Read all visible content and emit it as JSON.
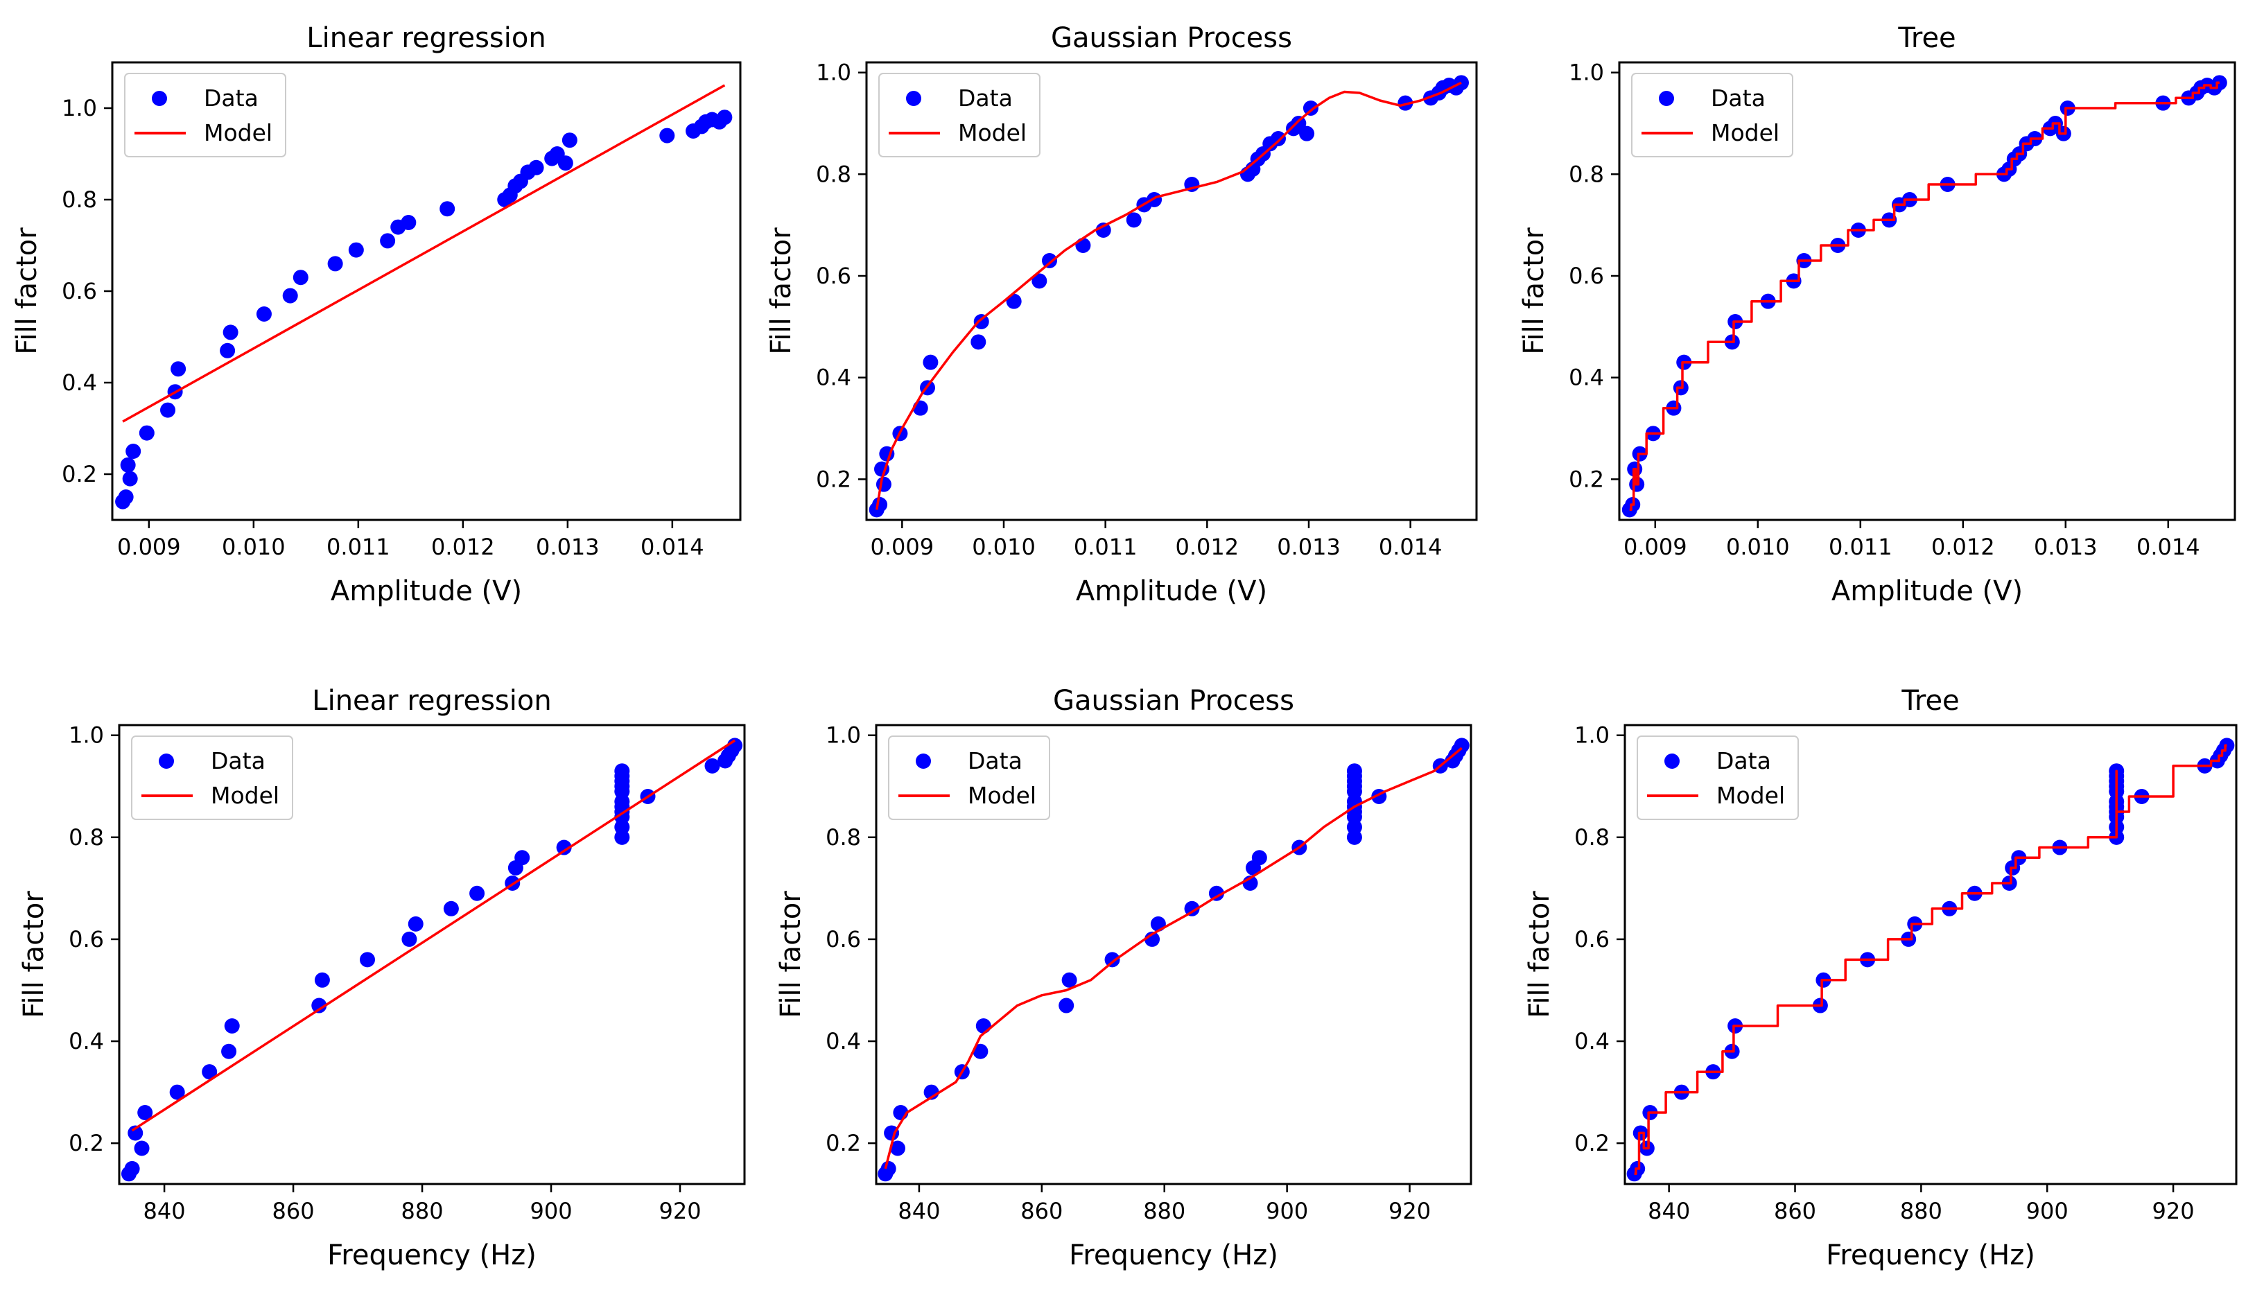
{
  "colors": {
    "data": "#0000ff",
    "model": "#ff0000",
    "axis": "#000000",
    "legend_border": "#cccccc",
    "background": "#ffffff"
  },
  "legend": {
    "data_label": "Data",
    "model_label": "Model",
    "placement": "top-left"
  },
  "amplitude_data": {
    "x": [
      0.00875,
      0.00878,
      0.0088,
      0.00882,
      0.00885,
      0.00898,
      0.00918,
      0.00925,
      0.00928,
      0.00975,
      0.00978,
      0.0101,
      0.01035,
      0.01045,
      0.01078,
      0.01098,
      0.01128,
      0.01138,
      0.01148,
      0.01185,
      0.0124,
      0.01245,
      0.0125,
      0.01255,
      0.01262,
      0.0127,
      0.01285,
      0.0129,
      0.01298,
      0.01302,
      0.01395,
      0.0142,
      0.01428,
      0.01432,
      0.01438,
      0.01445,
      0.0145
    ],
    "y": [
      0.14,
      0.15,
      0.22,
      0.19,
      0.25,
      0.29,
      0.34,
      0.38,
      0.43,
      0.47,
      0.51,
      0.55,
      0.59,
      0.63,
      0.66,
      0.69,
      0.71,
      0.74,
      0.75,
      0.78,
      0.8,
      0.81,
      0.83,
      0.84,
      0.86,
      0.87,
      0.89,
      0.9,
      0.88,
      0.93,
      0.94,
      0.95,
      0.96,
      0.97,
      0.975,
      0.97,
      0.98
    ]
  },
  "frequency_data": {
    "x": [
      834.5,
      835,
      835.5,
      836.5,
      837,
      842,
      847,
      850,
      850.5,
      864,
      864.5,
      871.5,
      878,
      879,
      884.5,
      888.5,
      894,
      894.5,
      895.5,
      902,
      911,
      911,
      911,
      911,
      911,
      911,
      911,
      911,
      911,
      911,
      911,
      915,
      925,
      927,
      927.5,
      928,
      928.5
    ],
    "y": [
      0.14,
      0.15,
      0.22,
      0.19,
      0.26,
      0.3,
      0.34,
      0.38,
      0.43,
      0.47,
      0.52,
      0.56,
      0.6,
      0.63,
      0.66,
      0.69,
      0.71,
      0.74,
      0.76,
      0.78,
      0.8,
      0.82,
      0.84,
      0.86,
      0.87,
      0.89,
      0.9,
      0.91,
      0.92,
      0.93,
      0.85,
      0.88,
      0.94,
      0.95,
      0.96,
      0.97,
      0.98
    ]
  },
  "chart_data": [
    {
      "type": "line",
      "model": "linear",
      "title": "Linear regression",
      "xlabel": "Amplitude (V)",
      "ylabel": "Fill factor",
      "xlim": [
        0.00865,
        0.01465
      ],
      "ylim": [
        0.1,
        1.1
      ],
      "xticks": [
        0.009,
        0.01,
        0.011,
        0.012,
        0.013,
        0.014
      ],
      "xtick_labels": [
        "0.009",
        "0.010",
        "0.011",
        "0.012",
        "0.013",
        "0.014"
      ],
      "yticks": [
        0.2,
        0.4,
        0.6,
        0.8,
        1.0
      ],
      "ytick_labels": [
        "0.2",
        "0.4",
        "0.6",
        "0.8",
        "1.0"
      ],
      "model_line": {
        "x": [
          0.00875,
          0.0145
        ],
        "y": [
          0.315,
          1.05
        ]
      }
    },
    {
      "type": "line",
      "model": "gp",
      "title": "Gaussian Process",
      "xlabel": "Amplitude (V)",
      "ylabel": "Fill factor",
      "xlim": [
        0.00865,
        0.01465
      ],
      "ylim": [
        0.12,
        1.02
      ],
      "xticks": [
        0.009,
        0.01,
        0.011,
        0.012,
        0.013,
        0.014
      ],
      "xtick_labels": [
        "0.009",
        "0.010",
        "0.011",
        "0.012",
        "0.013",
        "0.014"
      ],
      "yticks": [
        0.2,
        0.4,
        0.6,
        0.8,
        1.0
      ],
      "ytick_labels": [
        "0.2",
        "0.4",
        "0.6",
        "0.8",
        "1.0"
      ],
      "model_line": {
        "x": [
          0.00875,
          0.0088,
          0.0089,
          0.009,
          0.0092,
          0.0095,
          0.00975,
          0.01,
          0.0103,
          0.0106,
          0.0109,
          0.0112,
          0.0115,
          0.0118,
          0.0121,
          0.01235,
          0.0125,
          0.0127,
          0.0129,
          0.01305,
          0.0132,
          0.01335,
          0.0135,
          0.0137,
          0.0139,
          0.0141,
          0.0143,
          0.0145
        ],
        "y": [
          0.14,
          0.2,
          0.26,
          0.3,
          0.37,
          0.45,
          0.51,
          0.55,
          0.6,
          0.65,
          0.69,
          0.72,
          0.755,
          0.77,
          0.785,
          0.805,
          0.83,
          0.865,
          0.905,
          0.93,
          0.95,
          0.962,
          0.96,
          0.945,
          0.935,
          0.945,
          0.96,
          0.98
        ]
      }
    },
    {
      "type": "line",
      "model": "tree",
      "title": "Tree",
      "xlabel": "Amplitude (V)",
      "ylabel": "Fill factor",
      "xlim": [
        0.00865,
        0.01465
      ],
      "ylim": [
        0.12,
        1.02
      ],
      "xticks": [
        0.009,
        0.01,
        0.011,
        0.012,
        0.013,
        0.014
      ],
      "xtick_labels": [
        "0.009",
        "0.010",
        "0.011",
        "0.012",
        "0.013",
        "0.014"
      ],
      "yticks": [
        0.2,
        0.4,
        0.6,
        0.8,
        1.0
      ],
      "ytick_labels": [
        "0.2",
        "0.4",
        "0.6",
        "0.8",
        "1.0"
      ],
      "model_line": {
        "x": [
          0.00875,
          0.0093,
          0.0096,
          0.013,
          0.0134,
          0.0139,
          0.0145
        ],
        "y": [
          0.14,
          0.43,
          0.47,
          0.9,
          0.93,
          0.94,
          0.98
        ]
      }
    },
    {
      "type": "line",
      "model": "linear",
      "title": "Linear regression",
      "xlabel": "Frequency (Hz)",
      "ylabel": "Fill factor",
      "xlim": [
        833,
        930
      ],
      "ylim": [
        0.12,
        1.02
      ],
      "xticks": [
        840,
        860,
        880,
        900,
        920
      ],
      "xtick_labels": [
        "840",
        "860",
        "880",
        "900",
        "920"
      ],
      "yticks": [
        0.2,
        0.4,
        0.6,
        0.8,
        1.0
      ],
      "ytick_labels": [
        "0.2",
        "0.4",
        "0.6",
        "0.8",
        "1.0"
      ],
      "model_line": {
        "x": [
          835,
          928.5
        ],
        "y": [
          0.225,
          0.99
        ]
      }
    },
    {
      "type": "line",
      "model": "gp",
      "title": "Gaussian Process",
      "xlabel": "Frequency (Hz)",
      "ylabel": "Fill factor",
      "xlim": [
        833,
        930
      ],
      "ylim": [
        0.12,
        1.02
      ],
      "xticks": [
        840,
        860,
        880,
        900,
        920
      ],
      "xtick_labels": [
        "840",
        "860",
        "880",
        "900",
        "920"
      ],
      "yticks": [
        0.2,
        0.4,
        0.6,
        0.8,
        1.0
      ],
      "ytick_labels": [
        "0.2",
        "0.4",
        "0.6",
        "0.8",
        "1.0"
      ],
      "model_line": {
        "x": [
          834.5,
          836,
          838,
          842,
          846,
          848,
          850,
          852,
          856,
          860,
          864,
          868,
          872,
          878,
          884,
          888,
          894,
          898,
          902,
          906,
          911,
          916,
          920,
          924,
          928.5
        ],
        "y": [
          0.15,
          0.22,
          0.26,
          0.29,
          0.32,
          0.36,
          0.41,
          0.43,
          0.47,
          0.49,
          0.5,
          0.52,
          0.56,
          0.61,
          0.65,
          0.68,
          0.72,
          0.75,
          0.78,
          0.82,
          0.86,
          0.89,
          0.91,
          0.93,
          0.975
        ]
      }
    },
    {
      "type": "line",
      "model": "tree",
      "title": "Tree",
      "xlabel": "Frequency (Hz)",
      "ylabel": "Fill factor",
      "xlim": [
        833,
        930
      ],
      "ylim": [
        0.12,
        1.02
      ],
      "xticks": [
        840,
        860,
        880,
        900,
        920
      ],
      "xtick_labels": [
        "840",
        "860",
        "880",
        "900",
        "920"
      ],
      "yticks": [
        0.2,
        0.4,
        0.6,
        0.8,
        1.0
      ],
      "ytick_labels": [
        "0.2",
        "0.4",
        "0.6",
        "0.8",
        "1.0"
      ],
      "model_line": {
        "x": [
          834.5,
          911,
          911,
          928.5
        ],
        "y": [
          0.15,
          0.82,
          0.88,
          0.975
        ]
      }
    }
  ]
}
